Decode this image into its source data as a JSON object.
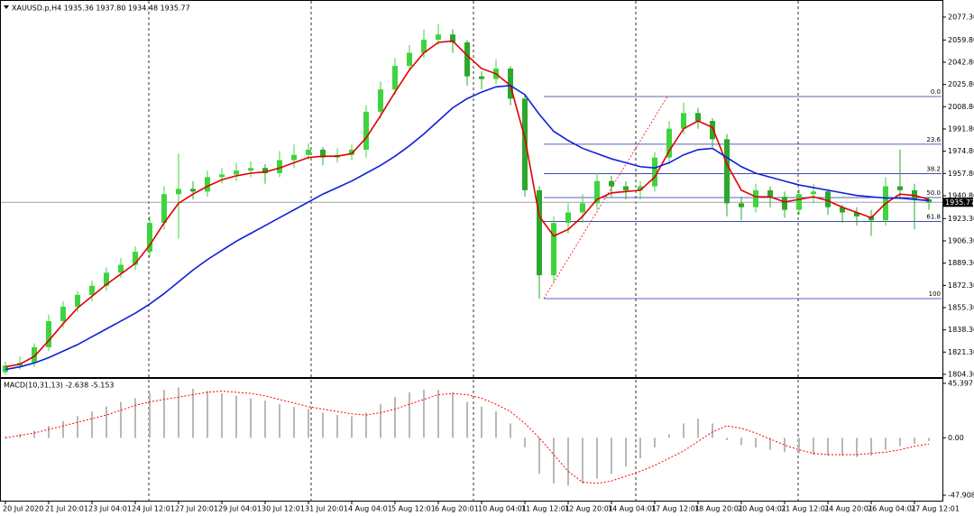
{
  "chart_data": [
    {
      "type": "candlestick",
      "title": "XAUUSD.p,H4  1935.36 1937.80 1934.48 1935.77",
      "categories": [
        "20 Jul 2020",
        null,
        null,
        "21 Jul 20:01",
        null,
        null,
        "23 Jul 04:01",
        null,
        null,
        "24 Jul 12:01",
        null,
        null,
        "27 Jul 20:01",
        null,
        null,
        "29 Jul 04:01",
        null,
        null,
        "30 Jul 12:01",
        null,
        null,
        "31 Jul 20:01",
        null,
        null,
        "4 Aug 04:01",
        null,
        null,
        "5 Aug 12:01",
        null,
        null,
        "6 Aug 20:01",
        null,
        null,
        "10 Aug 04:01",
        null,
        null,
        "11 Aug 12:01",
        null,
        null,
        "12 Aug 20:01",
        null,
        null,
        "14 Aug 04:01",
        null,
        null,
        "17 Aug 12:01",
        null,
        null,
        "18 Aug 20:01",
        null,
        null,
        "20 Aug 04:01",
        null,
        null,
        "21 Aug 12:01",
        null,
        null,
        "24 Aug 20:01",
        null,
        null,
        "26 Aug 04:01",
        null,
        null,
        "27 Aug 12:01",
        null
      ],
      "open": [
        1806,
        1811,
        1813,
        1825,
        1845,
        1856,
        1865,
        1872,
        1882,
        1888,
        1898,
        1920,
        1942,
        1946,
        1944,
        1955,
        1957,
        1960,
        1962,
        1958,
        1968,
        1972,
        1976,
        1970,
        1972,
        1976,
        2005,
        2022,
        2040,
        2050,
        2060,
        2064,
        2058,
        2032,
        2030,
        2038,
        2015,
        1945,
        1880,
        1920,
        1928,
        1935,
        1952,
        1948,
        1945,
        1948,
        1970,
        1992,
        2004,
        1998,
        1984,
        1935,
        1932,
        1945,
        1940,
        1930,
        1942,
        1944,
        1932,
        1928,
        1925,
        1922,
        1948,
        1945,
        1938
      ],
      "high": [
        1814,
        1818,
        1828,
        1850,
        1860,
        1868,
        1876,
        1886,
        1893,
        1902,
        1925,
        1948,
        1973,
        1952,
        1960,
        1962,
        1966,
        1967,
        1965,
        1975,
        1980,
        1981,
        1978,
        1977,
        1980,
        2010,
        2028,
        2046,
        2056,
        2068,
        2072,
        2068,
        2060,
        2036,
        2045,
        2040,
        2018,
        1948,
        1925,
        1935,
        1942,
        1958,
        1956,
        1952,
        1952,
        1974,
        1998,
        2012,
        2008,
        2000,
        1988,
        1940,
        1950,
        1948,
        1944,
        1946,
        1950,
        1946,
        1934,
        1932,
        1930,
        1955,
        1976,
        1950,
        1940
      ],
      "low": [
        1804,
        1808,
        1810,
        1822,
        1840,
        1852,
        1860,
        1868,
        1878,
        1884,
        1894,
        1915,
        1908,
        1938,
        1940,
        1950,
        1952,
        1955,
        1950,
        1955,
        1962,
        1968,
        1964,
        1966,
        1968,
        1970,
        2000,
        2018,
        2036,
        2046,
        2056,
        2050,
        2025,
        2022,
        2026,
        2010,
        1940,
        1862,
        1875,
        1912,
        1920,
        1930,
        1940,
        1938,
        1938,
        1944,
        1965,
        1988,
        1992,
        1978,
        1925,
        1922,
        1928,
        1932,
        1924,
        1926,
        1935,
        1926,
        1920,
        1918,
        1910,
        1918,
        1938,
        1915,
        1930
      ],
      "close": [
        1811,
        1813,
        1825,
        1845,
        1856,
        1865,
        1872,
        1882,
        1888,
        1898,
        1920,
        1942,
        1946,
        1944,
        1955,
        1957,
        1960,
        1962,
        1958,
        1968,
        1972,
        1976,
        1970,
        1972,
        1976,
        2005,
        2022,
        2040,
        2050,
        2060,
        2064,
        2058,
        2032,
        2030,
        2038,
        2015,
        1945,
        1880,
        1920,
        1928,
        1935,
        1952,
        1948,
        1945,
        1948,
        1970,
        1992,
        2004,
        1998,
        1984,
        1935,
        1932,
        1945,
        1940,
        1930,
        1942,
        1944,
        1932,
        1928,
        1925,
        1922,
        1948,
        1945,
        1938,
        1935.77
      ],
      "up_color": "#3fd43f",
      "down_color": "#2ca82c",
      "moving_averages": [
        {
          "color": "#e00000",
          "values": [
            1810,
            1812,
            1818,
            1830,
            1843,
            1855,
            1864,
            1873,
            1881,
            1889,
            1903,
            1920,
            1935,
            1942,
            1948,
            1953,
            1956,
            1958,
            1959,
            1962,
            1966,
            1970,
            1971,
            1971,
            1973,
            1985,
            2002,
            2020,
            2037,
            2050,
            2058,
            2059,
            2048,
            2038,
            2034,
            2025,
            1985,
            1925,
            1910,
            1915,
            1925,
            1938,
            1943,
            1944,
            1945,
            1955,
            1975,
            1992,
            1998,
            1993,
            1965,
            1945,
            1940,
            1940,
            1936,
            1938,
            1940,
            1937,
            1932,
            1928,
            1924,
            1935,
            1942,
            1941,
            1938
          ]
        },
        {
          "color": "#1020d8",
          "values": [
            1808,
            1810,
            1813,
            1817,
            1822,
            1827,
            1833,
            1839,
            1845,
            1851,
            1858,
            1866,
            1875,
            1884,
            1892,
            1899,
            1906,
            1912,
            1918,
            1924,
            1930,
            1936,
            1942,
            1947,
            1952,
            1958,
            1964,
            1971,
            1979,
            1988,
            1998,
            2008,
            2015,
            2020,
            2024,
            2025,
            2018,
            2003,
            1990,
            1983,
            1977,
            1973,
            1969,
            1966,
            1963,
            1962,
            1966,
            1972,
            1976,
            1977,
            1970,
            1963,
            1958,
            1955,
            1952,
            1949,
            1947,
            1945,
            1943,
            1941,
            1940,
            1939,
            1939,
            1938,
            1937
          ]
        }
      ],
      "current_price": 1935.77,
      "fibonacci": {
        "high": 2016.6,
        "low": 1862.2,
        "color": "#2030a0",
        "levels": [
          {
            "value": 0,
            "label": "0.0"
          },
          23.6,
          38.2,
          {
            "value": 50,
            "label": "50.0"
          },
          61.8,
          100
        ]
      },
      "ylim": [
        1802.2,
        2089.0
      ],
      "yticks": [
        {
          "value": 2077.3,
          "label": "2077.30"
        },
        {
          "value": 2059.8,
          "label": "2059.80"
        },
        {
          "value": 2042.8,
          "label": "2042.80"
        },
        {
          "value": 2025.8,
          "label": "2025.80"
        },
        {
          "value": 2008.8,
          "label": "2008.80"
        },
        {
          "value": 1991.8,
          "label": "1991.80"
        },
        {
          "value": 1974.8,
          "label": "1974.80"
        },
        {
          "value": 1957.8,
          "label": "1957.80"
        },
        {
          "value": 1940.8,
          "label": "1940.80"
        },
        {
          "value": 1923.3,
          "label": "1923.30"
        },
        {
          "value": 1906.3,
          "label": "1906.30"
        },
        {
          "value": 1889.3,
          "label": "1889.30"
        },
        {
          "value": 1872.3,
          "label": "1872.30"
        },
        {
          "value": 1855.3,
          "label": "1855.30"
        },
        {
          "value": 1838.3,
          "label": "1838.30"
        },
        {
          "value": 1821.3,
          "label": "1821.30"
        },
        {
          "value": 1804.3,
          "label": "1804.30"
        }
      ]
    },
    {
      "type": "macd",
      "title": "MACD(10,31,13) -2.638 -5.153",
      "histogram": [
        1,
        3,
        6,
        10,
        14,
        18,
        22,
        26,
        30,
        33,
        37,
        40,
        42,
        41,
        39,
        37,
        35,
        33,
        31,
        28,
        26,
        24,
        21,
        19,
        18,
        21,
        28,
        34,
        38,
        40,
        40,
        38,
        30,
        26,
        22,
        12,
        -8,
        -30,
        -38,
        -40,
        -38,
        -34,
        -30,
        -24,
        -17,
        -8,
        3,
        12,
        16,
        12,
        -2,
        -6,
        -8,
        -10,
        -12,
        -13,
        -14,
        -15,
        -15,
        -16,
        -15,
        -10,
        -7,
        -5,
        -2.638
      ],
      "signal": [
        0,
        2,
        4,
        7,
        10,
        13,
        16,
        19,
        23,
        27,
        30,
        32,
        34,
        36,
        38,
        39,
        38,
        37,
        35,
        32,
        29,
        26,
        24,
        22,
        20,
        19,
        21,
        24,
        28,
        32,
        36,
        37,
        36,
        33,
        28,
        22,
        12,
        0,
        -14,
        -28,
        -37,
        -38,
        -36,
        -32,
        -28,
        -23,
        -17,
        -11,
        -3,
        5,
        10,
        8,
        4,
        -1,
        -6,
        -10,
        -13,
        -14,
        -14,
        -14,
        -13,
        -12,
        -10,
        -7,
        -5.153
      ],
      "histogram_color": "#b8b8b8",
      "signal_color": "#ff0000",
      "ylim": [
        -53.17,
        48.41
      ],
      "yticks": [
        45.397,
        {
          "value": 0,
          "label": "0.00"
        },
        -47.908
      ]
    }
  ]
}
